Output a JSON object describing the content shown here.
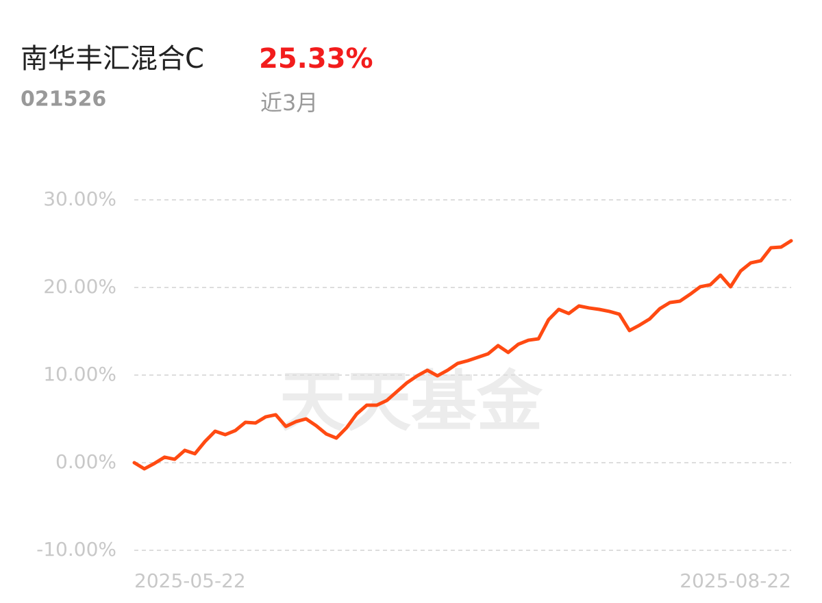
{
  "fund": {
    "name": "南华丰汇混合C",
    "code": "021526",
    "return": "25.33%",
    "period": "近3月"
  },
  "watermark": "天天基金",
  "chart_data": {
    "type": "line",
    "categories": [
      "2025-05-22",
      null,
      null,
      null,
      null,
      null,
      null,
      null,
      null,
      null,
      null,
      null,
      null,
      null,
      null,
      null,
      null,
      null,
      null,
      null,
      null,
      null,
      null,
      null,
      null,
      null,
      null,
      null,
      null,
      null,
      null,
      null,
      null,
      null,
      null,
      null,
      null,
      null,
      null,
      null,
      null,
      null,
      null,
      null,
      null,
      null,
      null,
      null,
      null,
      null,
      null,
      null,
      null,
      null,
      null,
      null,
      null,
      null,
      null,
      null,
      null,
      null,
      null,
      null,
      null,
      "2025-08-22"
    ],
    "series": [
      {
        "color": "#ff4a12",
        "values": [
          0,
          -0.7,
          -0.08,
          0.63,
          0.39,
          1.41,
          1.02,
          2.42,
          3.59,
          3.2,
          3.67,
          4.61,
          4.53,
          5.23,
          5.47,
          4.14,
          4.69,
          5.0,
          4.22,
          3.28,
          2.81,
          3.98,
          5.55,
          6.56,
          6.56,
          7.11,
          8.13,
          9.14,
          9.92,
          10.55,
          9.92,
          10.55,
          11.33,
          11.64,
          12.03,
          12.42,
          13.36,
          12.58,
          13.52,
          13.98,
          14.14,
          16.33,
          17.5,
          17.03,
          17.89,
          17.66,
          17.5,
          17.27,
          16.95,
          15.08,
          15.7,
          16.41,
          17.58,
          18.28,
          18.44,
          19.22,
          20.08,
          20.31,
          21.41,
          20.08,
          21.88,
          22.81,
          23.05,
          24.53,
          24.61,
          25.33
        ]
      }
    ],
    "ylim": [
      -10,
      30
    ],
    "yticks": [
      {
        "value": -10,
        "label": "-10.00%"
      },
      {
        "value": 0,
        "label": "0.00%"
      },
      {
        "value": 10,
        "label": "10.00%"
      },
      {
        "value": 20,
        "label": "20.00%"
      },
      {
        "value": 30,
        "label": "30.00%"
      }
    ],
    "grid": true
  }
}
